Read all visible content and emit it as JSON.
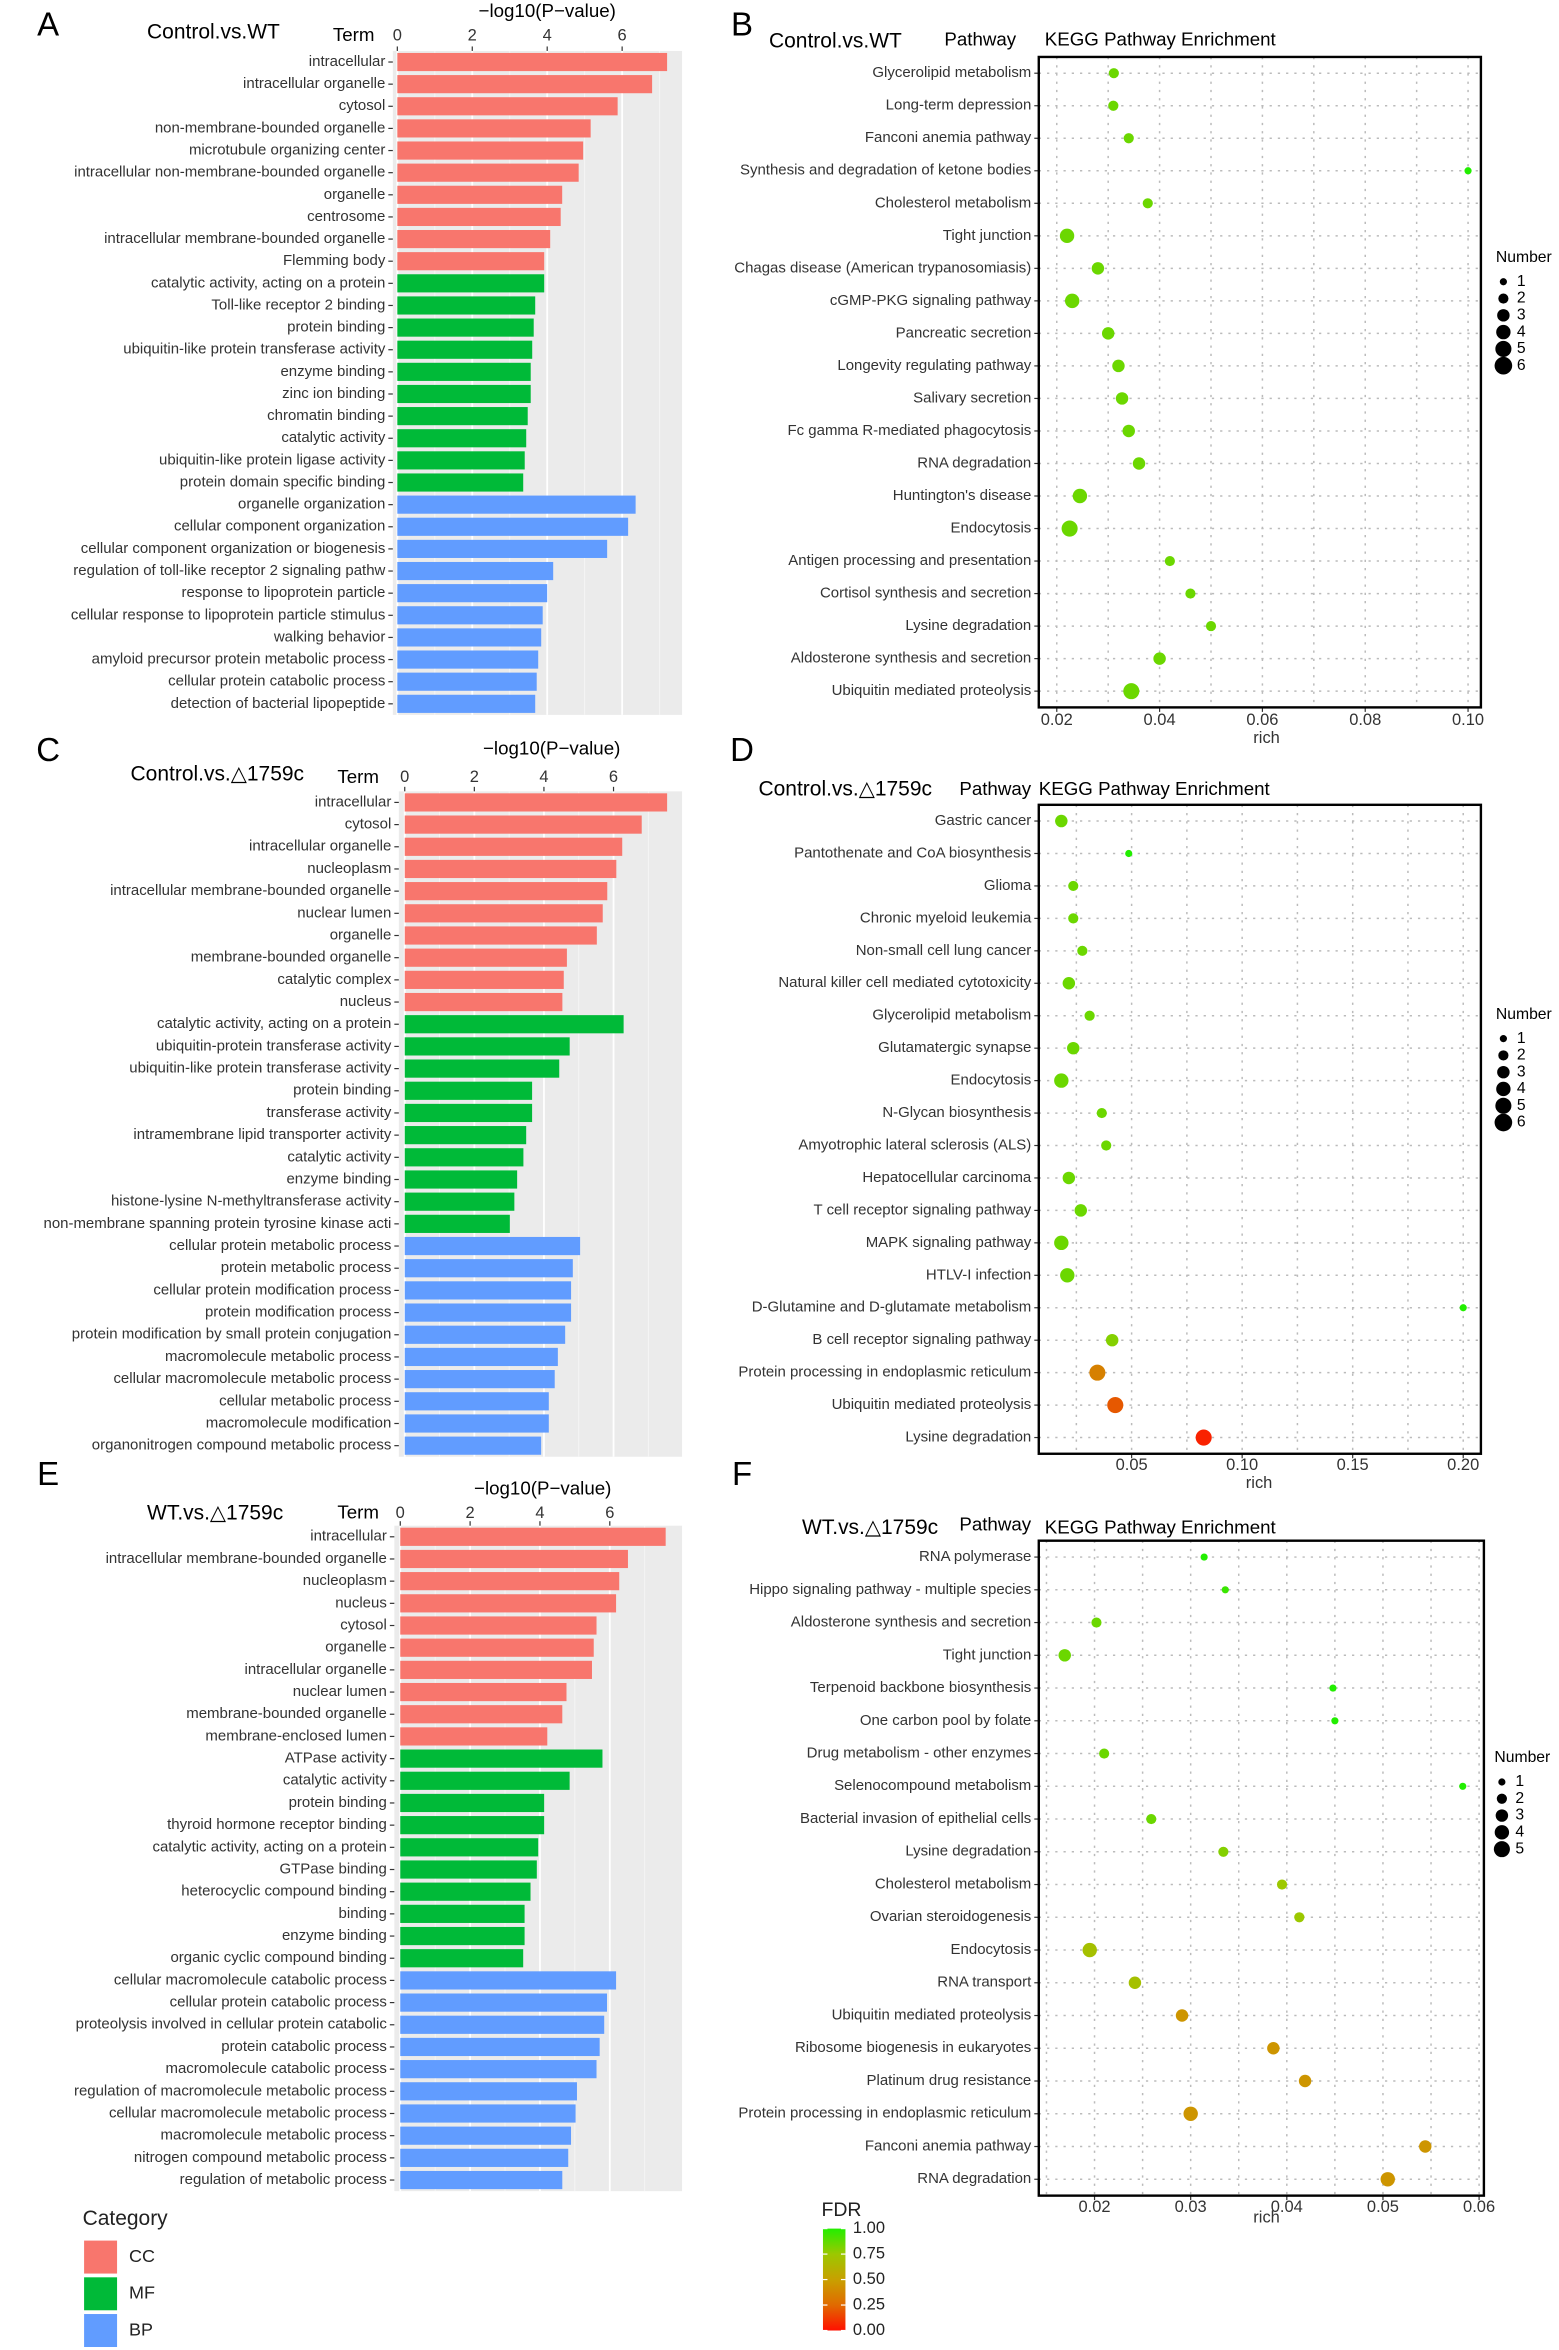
{
  "chart_data": [
    {
      "type": "bar",
      "panel": "A",
      "title": "Control.vs.WT",
      "y_label": "Term",
      "x_label": "−log10(P−value)",
      "xlim": [
        -0.12,
        7.6
      ],
      "xticks": [
        0,
        2,
        4,
        6
      ],
      "groups": [
        {
          "categories": [
            "intracellular",
            "intracellular organelle",
            "cytosol",
            "non-membrane-bounded organelle",
            "microtubule organizing center",
            "intracellular non-membrane-bounded organelle",
            "organelle",
            "centrosome",
            "intracellular membrane-bounded organelle",
            "Flemming body"
          ],
          "values": [
            7.2,
            6.8,
            5.88,
            5.16,
            4.96,
            4.84,
            4.4,
            4.36,
            4.08,
            3.92
          ]
        },
        {
          "categories": [
            "catalytic activity, acting on a protein",
            "Toll-like receptor 2 binding",
            "protein binding",
            "ubiquitin-like protein transferase activity",
            "enzyme binding",
            "zinc ion binding",
            "chromatin binding",
            "catalytic activity",
            "ubiquitin-like protein ligase activity",
            "protein domain specific binding"
          ],
          "values": [
            3.92,
            3.68,
            3.64,
            3.6,
            3.56,
            3.56,
            3.48,
            3.44,
            3.4,
            3.36
          ]
        },
        {
          "categories": [
            "organelle organization",
            "cellular component organization",
            "cellular component organization or biogenesis",
            "regulation of toll-like receptor 2 signaling pathw",
            "response to lipoprotein particle",
            "cellular response to lipoprotein particle stimulus",
            "walking behavior",
            "amyloid precursor protein metabolic process",
            "cellular protein catabolic process",
            "detection of bacterial lipopeptide"
          ],
          "values": [
            6.36,
            6.16,
            5.6,
            4.16,
            4.0,
            3.88,
            3.84,
            3.76,
            3.72,
            3.68
          ]
        }
      ]
    },
    {
      "type": "dot",
      "panel": "B",
      "title": "Control.vs.WT",
      "y_label": "Pathway",
      "subtitle": "KEGG Pathway Enrichment",
      "x_label": "rich",
      "xlim": [
        0.0165,
        0.1025
      ],
      "xticks": [
        0.02,
        0.04,
        0.06,
        0.08,
        {
          "value": 0.1,
          "label": "0.10"
        }
      ],
      "categories": [
        "Glycerolipid metabolism",
        "Long-term depression",
        "Fanconi anemia pathway",
        "Synthesis and degradation of ketone bodies",
        "Cholesterol metabolism",
        "Tight junction",
        "Chagas disease (American trypanosomiasis)",
        "cGMP-PKG signaling pathway",
        "Pancreatic secretion",
        "Longevity regulating pathway",
        "Salivary secretion",
        "Fc gamma R-mediated phagocytosis",
        "RNA degradation",
        "Huntington's disease",
        "Endocytosis",
        "Antigen processing and presentation",
        "Cortisol synthesis and secretion",
        "Lysine degradation",
        "Aldosterone synthesis and secretion",
        "Ubiquitin mediated proteolysis"
      ],
      "values": [
        0.0311,
        0.031,
        0.034,
        0.1,
        0.0377,
        0.022,
        0.028,
        0.023,
        0.03,
        0.032,
        0.0327,
        0.034,
        0.036,
        0.0245,
        0.0225,
        0.042,
        0.046,
        0.05,
        0.04,
        0.0345
      ],
      "sizes": [
        2,
        2,
        2,
        1,
        2,
        4,
        3,
        4,
        3,
        3,
        3,
        3,
        3,
        4,
        5,
        2,
        2,
        2,
        3,
        5
      ],
      "fdr": [
        0.85,
        0.85,
        0.85,
        1,
        0.85,
        0.85,
        0.85,
        0.85,
        0.85,
        0.85,
        0.85,
        0.85,
        0.85,
        0.85,
        0.85,
        0.85,
        0.85,
        0.85,
        0.85,
        0.85
      ],
      "size_legend": {
        "title": "Number",
        "values": [
          1,
          2,
          3,
          4,
          5,
          6
        ]
      }
    },
    {
      "type": "bar",
      "panel": "C",
      "title": "Control.vs.△1759c",
      "y_label": "Term",
      "x_label": "−log10(P−value)",
      "xlim": [
        -0.17,
        7.97
      ],
      "xticks": [
        0,
        2,
        4,
        6
      ],
      "groups": [
        {
          "categories": [
            "intracellular",
            "cytosol",
            "intracellular organelle",
            "nucleoplasm",
            "intracellular membrane-bounded organelle",
            "nuclear lumen",
            "organelle",
            "membrane-bounded organelle",
            "catalytic complex",
            "nucleus"
          ],
          "values": [
            7.54,
            6.81,
            6.25,
            6.08,
            5.82,
            5.69,
            5.52,
            4.66,
            4.57,
            4.53
          ]
        },
        {
          "categories": [
            "catalytic activity, acting on a protein",
            "ubiquitin-protein transferase activity",
            "ubiquitin-like protein transferase activity",
            "protein binding",
            "transferase activity",
            "intramembrane lipid transporter activity",
            "catalytic activity",
            "enzyme binding",
            "histone-lysine N-methyltransferase activity",
            "non-membrane spanning protein tyrosine kinase acti"
          ],
          "values": [
            6.29,
            4.74,
            4.44,
            3.66,
            3.66,
            3.49,
            3.41,
            3.23,
            3.15,
            3.02
          ]
        },
        {
          "categories": [
            "cellular protein metabolic process",
            "protein metabolic process",
            "cellular protein modification process",
            "protein modification process",
            "protein modification by small protein conjugation",
            "macromolecule metabolic process",
            "cellular macromolecule metabolic process",
            "cellular metabolic process",
            "macromolecule modification",
            "organonitrogen compound metabolic process"
          ],
          "values": [
            5.04,
            4.83,
            4.78,
            4.78,
            4.61,
            4.4,
            4.31,
            4.14,
            4.14,
            3.92
          ]
        }
      ]
    },
    {
      "type": "dot",
      "panel": "D",
      "title": "Control.vs.△1759c",
      "y_label": "Pathway",
      "subtitle": "KEGG Pathway Enrichment",
      "x_label": "rich",
      "xlim": [
        0.008,
        0.208
      ],
      "xticks": [
        0.05,
        {
          "value": 0.1,
          "label": "0.10"
        },
        0.15,
        {
          "value": 0.2,
          "label": "0.20"
        }
      ],
      "categories": [
        "Gastric cancer",
        "Pantothenate and CoA biosynthesis",
        "Glioma",
        "Chronic myeloid leukemia",
        "Non-small cell lung cancer",
        "Natural killer cell mediated cytotoxicity",
        "Glycerolipid metabolism",
        "Glutamatergic synapse",
        "Endocytosis",
        "N-Glycan biosynthesis",
        "Amyotrophic lateral sclerosis (ALS)",
        "Hepatocellular carcinoma",
        "T cell receptor signaling pathway",
        "MAPK signaling pathway",
        "HTLV-I infection",
        "D-Glutamine and D-glutamate metabolism",
        "B cell receptor signaling pathway",
        "Protein processing in endoplasmic reticulum",
        "Ubiquitin mediated proteolysis",
        "Lysine degradation"
      ],
      "values": [
        0.0182,
        0.0487,
        0.0236,
        0.0236,
        0.0277,
        0.0216,
        0.031,
        0.0236,
        0.0182,
        0.0365,
        0.0385,
        0.0216,
        0.027,
        0.0182,
        0.0209,
        0.2,
        0.0412,
        0.0345,
        0.0426,
        0.0826
      ],
      "sizes": [
        3,
        1,
        2,
        2,
        2,
        3,
        2,
        3,
        4,
        2,
        2,
        3,
        3,
        4,
        4,
        1,
        3,
        5,
        5,
        5
      ],
      "fdr": [
        0.85,
        1,
        0.85,
        0.85,
        0.85,
        0.85,
        0.85,
        0.85,
        0.85,
        0.85,
        0.85,
        0.85,
        0.85,
        0.85,
        0.85,
        1,
        0.8,
        0.35,
        0.2,
        0.05
      ],
      "size_legend": {
        "title": "Number",
        "values": [
          1,
          2,
          3,
          4,
          5,
          6
        ]
      }
    },
    {
      "type": "bar",
      "panel": "E",
      "title": "WT.vs.△1759c",
      "y_label": "Term",
      "x_label": "−log10(P−value)",
      "xlim": [
        -0.17,
        8.07
      ],
      "xticks": [
        0,
        2,
        4,
        6
      ],
      "groups": [
        {
          "categories": [
            "intracellular",
            "intracellular membrane-bounded organelle",
            "nucleoplasm",
            "nucleus",
            "cytosol",
            "organelle",
            "intracellular organelle",
            "nuclear lumen",
            "membrane-bounded organelle",
            "membrane-enclosed lumen"
          ],
          "values": [
            7.6,
            6.52,
            6.27,
            6.18,
            5.62,
            5.54,
            5.49,
            4.76,
            4.64,
            4.21
          ]
        },
        {
          "categories": [
            "ATPase activity",
            "catalytic activity",
            "protein binding",
            "thyroid hormone receptor binding",
            "catalytic activity, acting on a protein",
            "GTPase binding",
            "heterocyclic compound binding",
            "binding",
            "enzyme binding",
            "organic cyclic compound binding"
          ],
          "values": [
            5.79,
            4.85,
            4.12,
            4.12,
            3.95,
            3.91,
            3.73,
            3.56,
            3.56,
            3.52
          ]
        },
        {
          "categories": [
            "cellular macromolecule catabolic process",
            "cellular protein catabolic process",
            "proteolysis involved in cellular protein catabolic",
            "protein catabolic process",
            "macromolecule catabolic process",
            "regulation of macromolecule metabolic process",
            "cellular macromolecule metabolic process",
            "macromolecule metabolic process",
            "nitrogen compound metabolic process",
            "regulation of metabolic process"
          ],
          "values": [
            6.18,
            5.92,
            5.84,
            5.71,
            5.62,
            5.06,
            5.02,
            4.89,
            4.81,
            4.64
          ]
        }
      ]
    },
    {
      "type": "dot",
      "panel": "F",
      "title": "WT.vs.△1759c",
      "y_label": "Pathway",
      "subtitle": "KEGG Pathway Enrichment",
      "x_label": "rich",
      "xlim": [
        0.0142,
        0.0605
      ],
      "xticks": [
        0.02,
        0.03,
        0.04,
        0.05,
        0.06
      ],
      "categories": [
        "RNA polymerase",
        "Hippo signaling pathway - multiple species",
        "Aldosterone synthesis and secretion",
        "Tight junction",
        "Terpenoid backbone biosynthesis",
        "One carbon pool by folate",
        "Drug metabolism - other enzymes",
        "Selenocompound metabolism",
        "Bacterial invasion of epithelial cells",
        "Lysine degradation",
        "Cholesterol metabolism",
        "Ovarian steroidogenesis",
        "Endocytosis",
        "RNA transport",
        "Ubiquitin mediated proteolysis",
        "Ribosome biogenesis in eukaryotes",
        "Platinum drug resistance",
        "Protein processing in endoplasmic reticulum",
        "Fanconi anemia pathway",
        "RNA degradation"
      ],
      "values": [
        0.0314,
        0.0336,
        0.0202,
        0.0169,
        0.0448,
        0.045,
        0.021,
        0.0583,
        0.0259,
        0.0334,
        0.0395,
        0.0413,
        0.0195,
        0.0242,
        0.0291,
        0.0386,
        0.0419,
        0.03,
        0.0544,
        0.0505
      ],
      "sizes": [
        1,
        1,
        2,
        3,
        1,
        1,
        2,
        1,
        2,
        2,
        2,
        2,
        4,
        3,
        3,
        3,
        3,
        4,
        3,
        4
      ],
      "fdr": [
        1,
        0.95,
        0.85,
        0.85,
        1,
        1,
        0.85,
        1,
        0.85,
        0.8,
        0.75,
        0.75,
        0.7,
        0.7,
        0.45,
        0.45,
        0.45,
        0.45,
        0.45,
        0.45
      ],
      "size_legend": {
        "title": "Number",
        "values": [
          1,
          2,
          3,
          4,
          5
        ]
      }
    }
  ],
  "category_legend": {
    "title": "Category",
    "items": [
      {
        "name": "CC",
        "color": "#F8766D"
      },
      {
        "name": "MF",
        "color": "#00BA38"
      },
      {
        "name": "BP",
        "color": "#619CFF"
      }
    ]
  },
  "fdr_legend": {
    "title": "FDR",
    "ticks": [
      {
        "value": 1,
        "label": "1.00"
      },
      0.75,
      {
        "value": 0.5,
        "label": "0.50"
      },
      0.25,
      {
        "value": 0,
        "label": "0.00"
      }
    ],
    "colors": [
      "#22EE00",
      "#9CC800",
      "#C8A000",
      "#E06A00",
      "#FF1000"
    ]
  }
}
